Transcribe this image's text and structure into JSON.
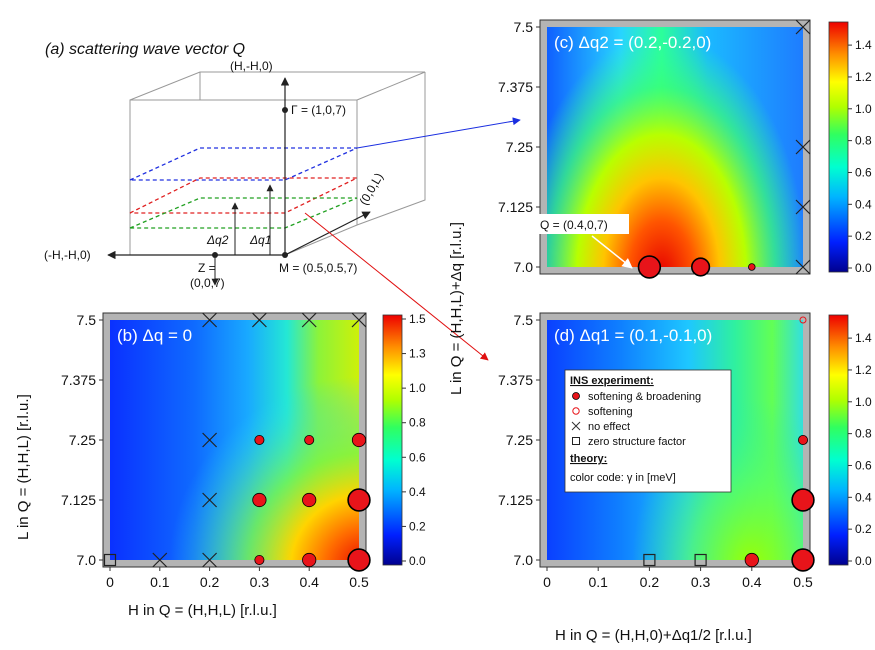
{
  "schematic": {
    "title": "(a) scattering wave vector Q",
    "axis_hh0": "(H,-H,0)",
    "axis_00L": "(0,0,L)",
    "axis_mhh0": "(-H,-H,0)",
    "gamma_label": "Γ = (1,0,7)",
    "z_label_1": "Z =",
    "z_label_2": "(0,0,7)",
    "m_label": "M = (0.5,0.5,7)",
    "dq2_label": "Δq2",
    "dq1_label": "Δq1"
  },
  "axis_labels": {
    "ylabel_left": "L in Q = (H,H,L) [r.l.u.]",
    "ylabel_right": "L in Q = (H,H,L)+Δq [r.l.u.]",
    "xlabel_left": "H in Q = (H,H,L) [r.l.u.]",
    "xlabel_right": "H in Q = (H,H,0)+Δq1/2 [r.l.u.]"
  },
  "legend": {
    "title_exp": "INS experiment:",
    "item1": "softening & broadening",
    "item2": "softening",
    "item3": "no effect",
    "item4": "zero structure factor",
    "title_theory": "theory:",
    "item5": "color code: γ in [meV]"
  },
  "q_annotation": "Q = (0.4,0,7)",
  "colors": {
    "marker_fill": "#e8141a",
    "marker_edge": "#000000",
    "frame": "#b4b4b4"
  },
  "chart_data": [
    {
      "id": "b",
      "type": "heatmap",
      "title": "(b) Δq = 0",
      "xlim": [
        0,
        0.5
      ],
      "ylim": [
        7.0,
        7.5
      ],
      "xticks": [
        "0",
        "0.1",
        "0.2",
        "0.3",
        "0.4",
        "0.5"
      ],
      "yticks": [
        "7.0",
        "7.125",
        "7.25",
        "7.375",
        "7.5"
      ],
      "colorbar": {
        "range": [
          0,
          1.5
        ],
        "ticks": [
          "0.0",
          "0.2",
          "0.4",
          "0.6",
          "0.8",
          "1.0",
          "1.3",
          "1.5"
        ]
      },
      "points": [
        {
          "x": 0.0,
          "y": 7.0,
          "kind": "square"
        },
        {
          "x": 0.1,
          "y": 7.0,
          "kind": "cross"
        },
        {
          "x": 0.2,
          "y": 7.0,
          "kind": "cross"
        },
        {
          "x": 0.2,
          "y": 7.125,
          "kind": "cross"
        },
        {
          "x": 0.2,
          "y": 7.25,
          "kind": "cross"
        },
        {
          "x": 0.2,
          "y": 7.5,
          "kind": "cross"
        },
        {
          "x": 0.3,
          "y": 7.5,
          "kind": "cross"
        },
        {
          "x": 0.4,
          "y": 7.5,
          "kind": "cross"
        },
        {
          "x": 0.5,
          "y": 7.5,
          "kind": "cross"
        },
        {
          "x": 0.3,
          "y": 7.0,
          "kind": "filled",
          "size": 1
        },
        {
          "x": 0.3,
          "y": 7.125,
          "kind": "filled",
          "size": 2
        },
        {
          "x": 0.3,
          "y": 7.25,
          "kind": "filled",
          "size": 1
        },
        {
          "x": 0.4,
          "y": 7.0,
          "kind": "filled",
          "size": 2
        },
        {
          "x": 0.4,
          "y": 7.125,
          "kind": "filled",
          "size": 2
        },
        {
          "x": 0.4,
          "y": 7.25,
          "kind": "filled",
          "size": 1
        },
        {
          "x": 0.5,
          "y": 7.0,
          "kind": "filled",
          "size": 4
        },
        {
          "x": 0.5,
          "y": 7.125,
          "kind": "filled",
          "size": 4
        },
        {
          "x": 0.5,
          "y": 7.25,
          "kind": "filled",
          "size": 2
        }
      ]
    },
    {
      "id": "c",
      "type": "heatmap",
      "title": "(c) Δq2 = (0.2,-0.2,0)",
      "xlim": [
        0,
        0.5
      ],
      "ylim": [
        7.0,
        7.5
      ],
      "xticks": [],
      "yticks": [
        "7.0",
        "7.125",
        "7.25",
        "7.375",
        "7.5"
      ],
      "colorbar": {
        "range": [
          0,
          1.5
        ],
        "ticks": [
          "0.0",
          "0.2",
          "0.4",
          "0.6",
          "0.8",
          "1.0",
          "1.2",
          "1.4"
        ]
      },
      "points": [
        {
          "x": 0.2,
          "y": 7.0,
          "kind": "filled",
          "size": 4
        },
        {
          "x": 0.3,
          "y": 7.0,
          "kind": "filled",
          "size": 3
        },
        {
          "x": 0.4,
          "y": 7.0,
          "kind": "filled",
          "size": 0.4
        },
        {
          "x": 0.5,
          "y": 7.0,
          "kind": "cross"
        },
        {
          "x": 0.5,
          "y": 7.125,
          "kind": "cross"
        },
        {
          "x": 0.5,
          "y": 7.25,
          "kind": "cross"
        },
        {
          "x": 0.5,
          "y": 7.5,
          "kind": "cross"
        }
      ]
    },
    {
      "id": "d",
      "type": "heatmap",
      "title": "(d) Δq1 = (0.1,-0.1,0)",
      "xlim": [
        0,
        0.5
      ],
      "ylim": [
        7.0,
        7.5
      ],
      "xticks": [
        "0",
        "0.1",
        "0.2",
        "0.3",
        "0.4",
        "0.5"
      ],
      "yticks": [
        "7.0",
        "7.125",
        "7.25",
        "7.375",
        "7.5"
      ],
      "colorbar": {
        "range": [
          0,
          1.5
        ],
        "ticks": [
          "0.0",
          "0.2",
          "0.4",
          "0.6",
          "0.8",
          "1.0",
          "1.2",
          "1.4"
        ]
      },
      "points": [
        {
          "x": 0.2,
          "y": 7.0,
          "kind": "square"
        },
        {
          "x": 0.3,
          "y": 7.0,
          "kind": "square"
        },
        {
          "x": 0.4,
          "y": 7.0,
          "kind": "filled",
          "size": 2
        },
        {
          "x": 0.5,
          "y": 7.0,
          "kind": "filled",
          "size": 4
        },
        {
          "x": 0.5,
          "y": 7.125,
          "kind": "filled",
          "size": 4
        },
        {
          "x": 0.5,
          "y": 7.25,
          "kind": "filled",
          "size": 1
        },
        {
          "x": 0.5,
          "y": 7.5,
          "kind": "open"
        }
      ]
    }
  ]
}
